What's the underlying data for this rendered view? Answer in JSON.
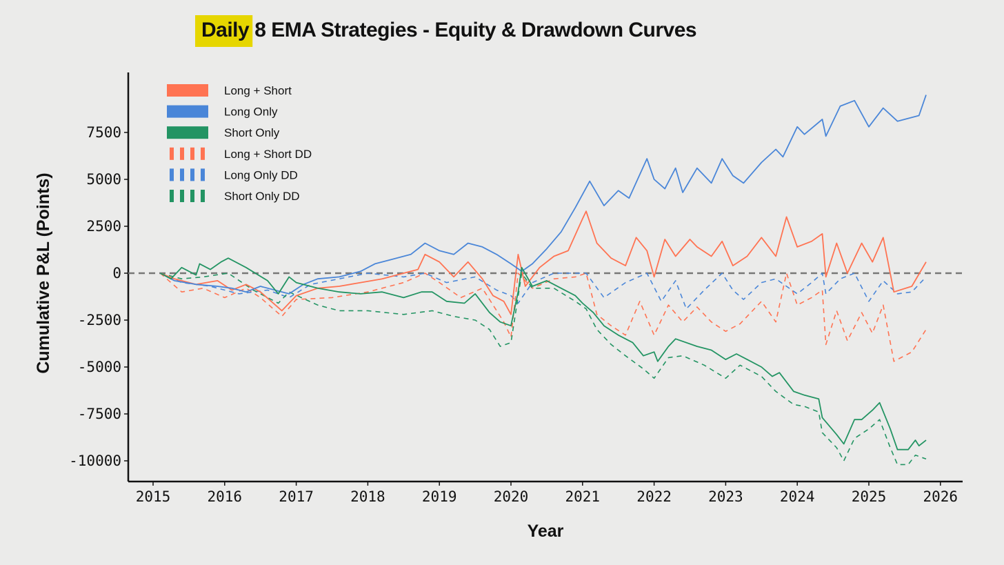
{
  "chart_data": {
    "type": "line",
    "title_highlight": "Daily",
    "title_rest": "8 EMA Strategies - Equity & Drawdown Curves",
    "xlabel": "Year",
    "ylabel": "Cumulative P&L (Points)",
    "xlim": [
      2014.65,
      2026.3
    ],
    "ylim": [
      -11000,
      10500
    ],
    "xticks": [
      2015,
      2016,
      2017,
      2018,
      2019,
      2020,
      2021,
      2022,
      2023,
      2024,
      2025,
      2026
    ],
    "yticks": [
      7500,
      5000,
      2500,
      0,
      -2500,
      -5000,
      -7500,
      -10000
    ],
    "zero_line": true,
    "legend_position": "top-left",
    "colors": {
      "long_short": "#ff7352",
      "long_only": "#4a86d8",
      "short_only": "#239463",
      "highlight": "#e6d600",
      "zero": "#777777"
    },
    "series": [
      {
        "name": "Long + Short",
        "key": "long_short",
        "style": "solid",
        "x": [
          2015.1,
          2015.3,
          2015.6,
          2015.9,
          2016.1,
          2016.3,
          2016.5,
          2016.8,
          2017.0,
          2017.3,
          2017.6,
          2017.9,
          2018.2,
          2018.5,
          2018.7,
          2018.8,
          2019.0,
          2019.2,
          2019.4,
          2019.6,
          2019.75,
          2019.9,
          2020.0,
          2020.1,
          2020.2,
          2020.4,
          2020.6,
          2020.8,
          2021.0,
          2021.05,
          2021.2,
          2021.4,
          2021.6,
          2021.75,
          2021.9,
          2022.0,
          2022.15,
          2022.3,
          2022.5,
          2022.6,
          2022.8,
          2022.95,
          2023.1,
          2023.3,
          2023.5,
          2023.7,
          2023.85,
          2024.0,
          2024.2,
          2024.35,
          2024.4,
          2024.55,
          2024.7,
          2024.9,
          2025.05,
          2025.2,
          2025.35,
          2025.6,
          2025.8
        ],
        "y": [
          0,
          -300,
          -600,
          -400,
          -900,
          -600,
          -1000,
          -2000,
          -1200,
          -800,
          -700,
          -500,
          -300,
          0,
          200,
          1000,
          600,
          -200,
          600,
          -300,
          -1200,
          -1500,
          -2200,
          1000,
          -700,
          300,
          900,
          1200,
          2900,
          3300,
          1600,
          800,
          400,
          1900,
          1200,
          -200,
          1800,
          900,
          1800,
          1400,
          900,
          1700,
          400,
          900,
          1900,
          900,
          3000,
          1400,
          1700,
          2100,
          -200,
          1600,
          0,
          1600,
          600,
          1900,
          -1000,
          -700,
          600
        ]
      },
      {
        "name": "Long Only",
        "key": "long_only",
        "style": "solid",
        "x": [
          2015.1,
          2015.3,
          2015.6,
          2015.9,
          2016.1,
          2016.3,
          2016.5,
          2016.7,
          2016.9,
          2017.1,
          2017.3,
          2017.6,
          2017.9,
          2018.1,
          2018.3,
          2018.6,
          2018.8,
          2019.0,
          2019.2,
          2019.4,
          2019.6,
          2019.8,
          2020.0,
          2020.15,
          2020.3,
          2020.5,
          2020.7,
          2020.9,
          2021.1,
          2021.3,
          2021.5,
          2021.65,
          2021.9,
          2022.0,
          2022.15,
          2022.3,
          2022.4,
          2022.6,
          2022.8,
          2022.95,
          2023.1,
          2023.25,
          2023.5,
          2023.7,
          2023.8,
          2024.0,
          2024.1,
          2024.35,
          2024.4,
          2024.6,
          2024.8,
          2025.0,
          2025.2,
          2025.4,
          2025.7,
          2025.8
        ],
        "y": [
          0,
          -400,
          -600,
          -700,
          -800,
          -1000,
          -700,
          -900,
          -1100,
          -600,
          -300,
          -200,
          100,
          500,
          700,
          1000,
          1600,
          1200,
          1000,
          1600,
          1400,
          1000,
          500,
          100,
          500,
          1300,
          2200,
          3500,
          4900,
          3600,
          4400,
          4000,
          6100,
          5000,
          4500,
          5600,
          4300,
          5600,
          4800,
          6100,
          5200,
          4800,
          5900,
          6600,
          6200,
          7800,
          7400,
          8200,
          7300,
          8900,
          9200,
          7800,
          8800,
          8100,
          8400,
          9500
        ]
      },
      {
        "name": "Short Only",
        "key": "short_only",
        "style": "solid",
        "x": [
          2015.1,
          2015.25,
          2015.4,
          2015.6,
          2015.65,
          2015.8,
          2015.95,
          2016.05,
          2016.3,
          2016.6,
          2016.75,
          2016.9,
          2017.0,
          2017.3,
          2017.6,
          2017.9,
          2018.2,
          2018.5,
          2018.75,
          2018.9,
          2019.1,
          2019.35,
          2019.5,
          2019.7,
          2019.85,
          2020.0,
          2020.1,
          2020.15,
          2020.3,
          2020.5,
          2020.7,
          2020.9,
          2021.0,
          2021.15,
          2021.3,
          2021.5,
          2021.7,
          2021.85,
          2022.0,
          2022.05,
          2022.2,
          2022.3,
          2022.6,
          2022.8,
          2023.0,
          2023.15,
          2023.3,
          2023.5,
          2023.65,
          2023.75,
          2023.95,
          2024.1,
          2024.3,
          2024.35,
          2024.55,
          2024.65,
          2024.8,
          2024.9,
          2025.05,
          2025.15,
          2025.3,
          2025.4,
          2025.55,
          2025.65,
          2025.7,
          2025.8
        ],
        "y": [
          0,
          -300,
          300,
          -100,
          500,
          200,
          600,
          800,
          300,
          -400,
          -1100,
          -200,
          -500,
          -800,
          -1000,
          -1100,
          -1000,
          -1300,
          -1000,
          -1000,
          -1500,
          -1600,
          -1100,
          -2100,
          -2600,
          -2800,
          -1000,
          300,
          -700,
          -400,
          -800,
          -1200,
          -1600,
          -2100,
          -2800,
          -3300,
          -3700,
          -4400,
          -4200,
          -4700,
          -3900,
          -3500,
          -3900,
          -4100,
          -4600,
          -4300,
          -4600,
          -5000,
          -5500,
          -5300,
          -6300,
          -6500,
          -6700,
          -7700,
          -8600,
          -9100,
          -7800,
          -7800,
          -7300,
          -6900,
          -8300,
          -9400,
          -9400,
          -8900,
          -9200,
          -8900
        ]
      },
      {
        "name": "Long + Short DD",
        "key": "long_short",
        "style": "dashed",
        "x": [
          2015.1,
          2015.4,
          2015.7,
          2016.0,
          2016.3,
          2016.5,
          2016.8,
          2017.0,
          2017.5,
          2018.0,
          2018.5,
          2018.8,
          2019.0,
          2019.3,
          2019.6,
          2019.9,
          2020.0,
          2020.1,
          2020.3,
          2020.6,
          2020.9,
          2021.05,
          2021.2,
          2021.4,
          2021.6,
          2021.8,
          2022.0,
          2022.2,
          2022.4,
          2022.6,
          2022.8,
          2023.0,
          2023.2,
          2023.5,
          2023.7,
          2023.85,
          2024.0,
          2024.2,
          2024.35,
          2024.4,
          2024.55,
          2024.7,
          2024.9,
          2025.05,
          2025.2,
          2025.35,
          2025.6,
          2025.8
        ],
        "y": [
          0,
          -1000,
          -800,
          -1300,
          -800,
          -1300,
          -2300,
          -1400,
          -1300,
          -1000,
          -500,
          0,
          -500,
          -1300,
          -800,
          -2600,
          -3400,
          0,
          -800,
          -300,
          -200,
          0,
          -2200,
          -2800,
          -3300,
          -1500,
          -3300,
          -1700,
          -2600,
          -1800,
          -2600,
          -3100,
          -2700,
          -1500,
          -2600,
          0,
          -1700,
          -1300,
          -900,
          -3800,
          -2000,
          -3600,
          -2100,
          -3200,
          -1700,
          -4700,
          -4200,
          -3000
        ]
      },
      {
        "name": "Long Only DD",
        "key": "long_only",
        "style": "dashed",
        "x": [
          2015.1,
          2015.4,
          2015.8,
          2016.2,
          2016.6,
          2016.9,
          2017.2,
          2017.6,
          2018.0,
          2018.5,
          2018.8,
          2019.1,
          2019.5,
          2019.8,
          2020.0,
          2020.1,
          2020.3,
          2020.6,
          2021.05,
          2021.3,
          2021.6,
          2021.9,
          2022.1,
          2022.3,
          2022.45,
          2022.7,
          2022.95,
          2023.1,
          2023.25,
          2023.5,
          2023.7,
          2024.0,
          2024.2,
          2024.35,
          2024.4,
          2024.6,
          2024.8,
          2025.0,
          2025.2,
          2025.4,
          2025.6,
          2025.8
        ],
        "y": [
          0,
          -500,
          -700,
          -1100,
          -900,
          -1300,
          -600,
          -300,
          0,
          -200,
          0,
          -500,
          -200,
          -900,
          -1200,
          -1600,
          -500,
          0,
          0,
          -1300,
          -500,
          0,
          -1500,
          -400,
          -1900,
          -900,
          0,
          -900,
          -1400,
          -500,
          -300,
          -1100,
          -500,
          0,
          -1100,
          -300,
          0,
          -1500,
          -400,
          -1100,
          -1000,
          -200
        ]
      },
      {
        "name": "Short Only DD",
        "key": "short_only",
        "style": "dashed",
        "x": [
          2015.1,
          2015.4,
          2015.7,
          2016.05,
          2016.4,
          2016.75,
          2016.9,
          2017.3,
          2017.6,
          2018.0,
          2018.5,
          2018.9,
          2019.2,
          2019.5,
          2019.7,
          2019.85,
          2020.0,
          2020.15,
          2020.3,
          2020.6,
          2020.9,
          2021.05,
          2021.2,
          2021.4,
          2021.6,
          2021.85,
          2022.0,
          2022.2,
          2022.4,
          2022.7,
          2023.0,
          2023.2,
          2023.5,
          2023.7,
          2023.95,
          2024.1,
          2024.3,
          2024.35,
          2024.55,
          2024.65,
          2024.8,
          2025.0,
          2025.15,
          2025.3,
          2025.4,
          2025.55,
          2025.65,
          2025.8
        ],
        "y": [
          0,
          -300,
          -200,
          0,
          -900,
          -1600,
          -1000,
          -1700,
          -2000,
          -2000,
          -2200,
          -2000,
          -2300,
          -2500,
          -3000,
          -3900,
          -3700,
          0,
          -800,
          -800,
          -1500,
          -1900,
          -3000,
          -3800,
          -4400,
          -5100,
          -5600,
          -4500,
          -4400,
          -4900,
          -5600,
          -4900,
          -5500,
          -6300,
          -7000,
          -7100,
          -7400,
          -8500,
          -9300,
          -10000,
          -8800,
          -8300,
          -7800,
          -9300,
          -10200,
          -10200,
          -9700,
          -9900
        ]
      }
    ]
  }
}
